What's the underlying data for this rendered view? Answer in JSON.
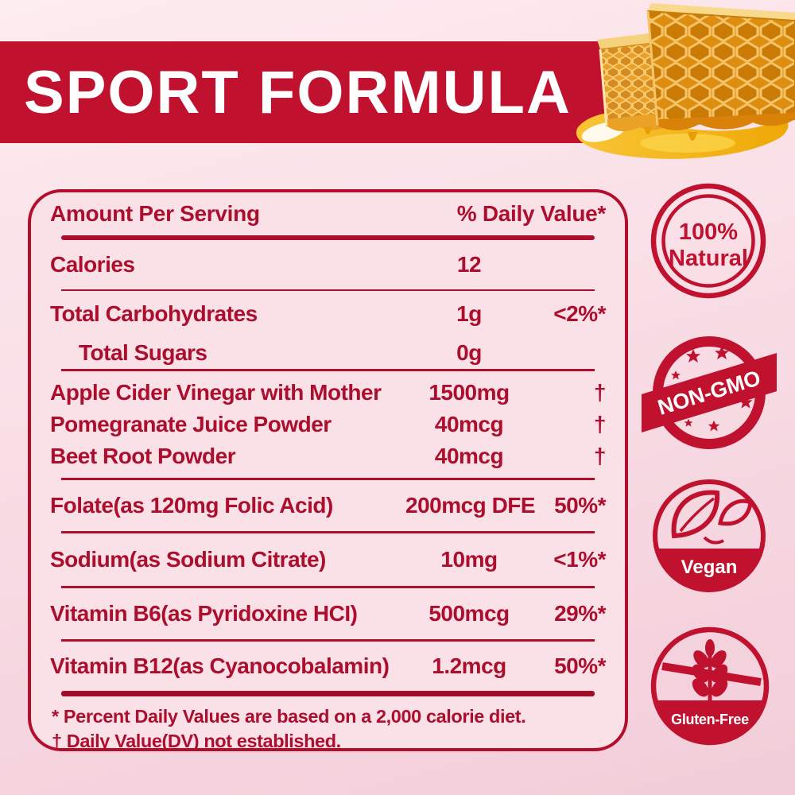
{
  "page_title": "Sport Formula supplement facts panel",
  "palette": {
    "accent_red": "#C0122F",
    "text_red": "#AC0E2D",
    "background_pink": "#F8DEE6",
    "table_pink": "#FAE1E8",
    "honey_amber": "#E9A126",
    "white": "#FFFFFF"
  },
  "banner": {
    "title": "SPORT FORMULA"
  },
  "hero": {
    "name": "honeycomb-photo"
  },
  "supplement_table": {
    "header": {
      "amount_label": "Amount Per Serving",
      "dv_label": "% Daily Value*"
    },
    "sections": [
      {
        "id": "calories",
        "rule_after": "thin",
        "rows": [
          {
            "name": "Calories",
            "amount": "12",
            "dv": ""
          }
        ]
      },
      {
        "id": "carbs",
        "rule_after": "med",
        "rows": [
          {
            "name": "Total Carbohydrates",
            "amount": "1g",
            "dv": "<2%*"
          },
          {
            "name": "Total Sugars",
            "amount": "0g",
            "dv": "",
            "indent": true
          }
        ]
      },
      {
        "id": "botanicals",
        "rule_after": "med",
        "rows": [
          {
            "name": "Apple Cider Vinegar with Mother",
            "amount": "1500mg",
            "dv": "†"
          },
          {
            "name": "Pomegranate Juice Powder",
            "amount": "40mcg",
            "dv": "†"
          },
          {
            "name": "Beet Root Powder",
            "amount": "40mcg",
            "dv": "†"
          }
        ]
      },
      {
        "id": "folate",
        "rule_after": "med",
        "rows": [
          {
            "name": "Folate(as 120mg Folic Acid)",
            "amount": "200mcg DFE",
            "dv": "50%*"
          }
        ]
      },
      {
        "id": "sodium",
        "rule_after": "med",
        "rows": [
          {
            "name": "Sodium(as Sodium Citrate)",
            "amount": "10mg",
            "dv": "<1%*"
          }
        ]
      },
      {
        "id": "b6",
        "rule_after": "med",
        "rows": [
          {
            "name": "Vitamin B6(as Pyridoxine HCI)",
            "amount": "500mcg",
            "dv": "29%*"
          }
        ]
      },
      {
        "id": "b12",
        "rule_after": "thickBottom",
        "rows": [
          {
            "name": "Vitamin B12(as Cyanocobalamin)",
            "amount": "1.2mcg",
            "dv": "50%*"
          }
        ]
      }
    ],
    "footnotes": [
      "* Percent Daily Values are based on a 2,000 calorie diet.",
      "†  Daily Value(DV) not established."
    ]
  },
  "badges": {
    "natural": {
      "line1": "100%",
      "line2": "Natural"
    },
    "non_gmo": {
      "label": "NON-GMO"
    },
    "vegan": {
      "label": "Vegan"
    },
    "gluten_free": {
      "label": "Gluten-Free"
    }
  }
}
